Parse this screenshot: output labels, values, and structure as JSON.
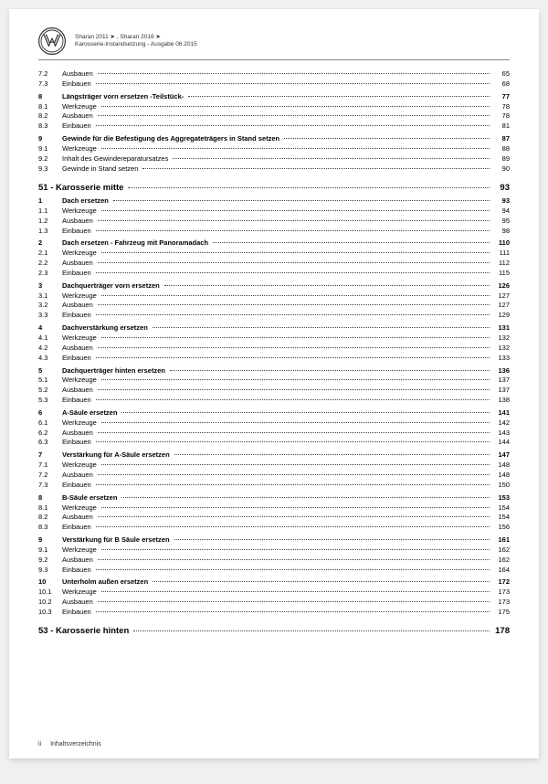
{
  "header": {
    "line1": "Sharan 2011 ➤ , Sharan 2016 ➤",
    "line2": "Karosserie-Instandsetzung - Ausgabe 06.2015"
  },
  "footer": {
    "page": "ii",
    "label": "Inhaltsverzeichnis"
  },
  "toc": [
    {
      "n": "7.2",
      "t": "Ausbauen",
      "p": "65",
      "b": false
    },
    {
      "n": "7.3",
      "t": "Einbauen",
      "p": "68",
      "b": false
    },
    {
      "n": "8",
      "t": "Längsträger vorn ersetzen -Teilstück-",
      "p": "77",
      "b": true,
      "sp": true
    },
    {
      "n": "8.1",
      "t": "Werkzeuge",
      "p": "78",
      "b": false
    },
    {
      "n": "8.2",
      "t": "Ausbauen",
      "p": "78",
      "b": false
    },
    {
      "n": "8.3",
      "t": "Einbauen",
      "p": "81",
      "b": false
    },
    {
      "n": "9",
      "t": "Gewinde für die Befestigung des Aggregateträgers in Stand setzen",
      "p": "87",
      "b": true,
      "sp": true
    },
    {
      "n": "9.1",
      "t": "Werkzeuge",
      "p": "88",
      "b": false
    },
    {
      "n": "9.2",
      "t": "Inhalt des Gewindereparatursatzes",
      "p": "89",
      "b": false
    },
    {
      "n": "9.3",
      "t": "Gewinde in Stand setzen",
      "p": "90",
      "b": false
    },
    {
      "chapter": true,
      "t": "51 - Karosserie mitte",
      "p": "93"
    },
    {
      "n": "1",
      "t": "Dach ersetzen",
      "p": "93",
      "b": true
    },
    {
      "n": "1.1",
      "t": "Werkzeuge",
      "p": "94",
      "b": false
    },
    {
      "n": "1.2",
      "t": "Ausbauen",
      "p": "95",
      "b": false
    },
    {
      "n": "1.3",
      "t": "Einbauen",
      "p": "98",
      "b": false
    },
    {
      "n": "2",
      "t": "Dach ersetzen - Fahrzeug mit Panoramadach",
      "p": "110",
      "b": true,
      "sp": true
    },
    {
      "n": "2.1",
      "t": "Werkzeuge",
      "p": "111",
      "b": false
    },
    {
      "n": "2.2",
      "t": "Ausbauen",
      "p": "112",
      "b": false
    },
    {
      "n": "2.3",
      "t": "Einbauen",
      "p": "115",
      "b": false
    },
    {
      "n": "3",
      "t": "Dachquerträger vorn ersetzen",
      "p": "126",
      "b": true,
      "sp": true
    },
    {
      "n": "3.1",
      "t": "Werkzeuge",
      "p": "127",
      "b": false
    },
    {
      "n": "3.2",
      "t": "Ausbauen",
      "p": "127",
      "b": false
    },
    {
      "n": "3.3",
      "t": "Einbauen",
      "p": "129",
      "b": false
    },
    {
      "n": "4",
      "t": "Dachverstärkung ersetzen",
      "p": "131",
      "b": true,
      "sp": true
    },
    {
      "n": "4.1",
      "t": "Werkzeuge",
      "p": "132",
      "b": false
    },
    {
      "n": "4.2",
      "t": "Ausbauen",
      "p": "132",
      "b": false
    },
    {
      "n": "4.3",
      "t": "Einbauen",
      "p": "133",
      "b": false
    },
    {
      "n": "5",
      "t": "Dachquerträger hinten ersetzen",
      "p": "136",
      "b": true,
      "sp": true
    },
    {
      "n": "5.1",
      "t": "Werkzeuge",
      "p": "137",
      "b": false
    },
    {
      "n": "5.2",
      "t": "Ausbauen",
      "p": "137",
      "b": false
    },
    {
      "n": "5.3",
      "t": "Einbauen",
      "p": "138",
      "b": false
    },
    {
      "n": "6",
      "t": "A-Säule ersetzen",
      "p": "141",
      "b": true,
      "sp": true
    },
    {
      "n": "6.1",
      "t": "Werkzeuge",
      "p": "142",
      "b": false
    },
    {
      "n": "6.2",
      "t": "Ausbauen",
      "p": "143",
      "b": false
    },
    {
      "n": "6.3",
      "t": "Einbauen",
      "p": "144",
      "b": false
    },
    {
      "n": "7",
      "t": "Verstärkung für A-Säule ersetzen",
      "p": "147",
      "b": true,
      "sp": true
    },
    {
      "n": "7.1",
      "t": "Werkzeuge",
      "p": "148",
      "b": false
    },
    {
      "n": "7.2",
      "t": "Ausbauen",
      "p": "148",
      "b": false
    },
    {
      "n": "7.3",
      "t": "Einbauen",
      "p": "150",
      "b": false
    },
    {
      "n": "8",
      "t": "B-Säule ersetzen",
      "p": "153",
      "b": true,
      "sp": true
    },
    {
      "n": "8.1",
      "t": "Werkzeuge",
      "p": "154",
      "b": false
    },
    {
      "n": "8.2",
      "t": "Ausbauen",
      "p": "154",
      "b": false
    },
    {
      "n": "8.3",
      "t": "Einbauen",
      "p": "156",
      "b": false
    },
    {
      "n": "9",
      "t": "Verstärkung für B Säule ersetzen",
      "p": "161",
      "b": true,
      "sp": true
    },
    {
      "n": "9.1",
      "t": "Werkzeuge",
      "p": "162",
      "b": false
    },
    {
      "n": "9.2",
      "t": "Ausbauen",
      "p": "162",
      "b": false
    },
    {
      "n": "9.3",
      "t": "Einbauen",
      "p": "164",
      "b": false
    },
    {
      "n": "10",
      "t": "Unterholm außen ersetzen",
      "p": "172",
      "b": true,
      "sp": true
    },
    {
      "n": "10.1",
      "t": "Werkzeuge",
      "p": "173",
      "b": false
    },
    {
      "n": "10.2",
      "t": "Ausbauen",
      "p": "173",
      "b": false
    },
    {
      "n": "10.3",
      "t": "Einbauen",
      "p": "175",
      "b": false
    },
    {
      "chapter": true,
      "t": "53 - Karosserie hinten",
      "p": "178"
    }
  ]
}
